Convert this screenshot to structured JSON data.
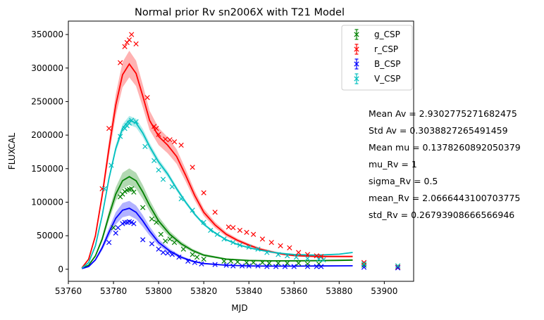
{
  "chart_data": {
    "type": "scatter",
    "title": "Normal prior Rv sn2006X with T21 Model",
    "xlabel": "MJD",
    "ylabel": "FLUXCAL",
    "xlim": [
      53760,
      53913
    ],
    "ylim": [
      -18000,
      370000
    ],
    "x_ticks": [
      53760,
      53780,
      53800,
      53820,
      53840,
      53860,
      53880,
      53900
    ],
    "y_ticks": [
      0,
      50000,
      100000,
      150000,
      200000,
      250000,
      300000,
      350000
    ],
    "grid": false,
    "legend_position": "top-right",
    "series": [
      {
        "name": "g_CSP",
        "color": "#008000",
        "points": [
          [
            53780,
            62000
          ],
          [
            53783,
            108000
          ],
          [
            53784,
            112000
          ],
          [
            53785,
            116000
          ],
          [
            53786,
            118000
          ],
          [
            53787,
            119000
          ],
          [
            53788,
            120000
          ],
          [
            53789,
            115000
          ],
          [
            53793,
            92000
          ],
          [
            53797,
            75000
          ],
          [
            53799,
            70000
          ],
          [
            53801,
            52000
          ],
          [
            53803,
            42000
          ],
          [
            53805,
            45000
          ],
          [
            53807,
            40000
          ],
          [
            53811,
            30000
          ],
          [
            53815,
            22000
          ],
          [
            53817,
            18000
          ],
          [
            53820,
            15000
          ],
          [
            53829,
            12000
          ],
          [
            53832,
            12000
          ],
          [
            53835,
            11000
          ],
          [
            53839,
            10000
          ],
          [
            53842,
            10000
          ],
          [
            53846,
            10000
          ],
          [
            53849,
            9000
          ],
          [
            53853,
            9000
          ],
          [
            53857,
            9000
          ],
          [
            53862,
            9000
          ],
          [
            53866,
            8000
          ],
          [
            53871,
            8000
          ],
          [
            53891,
            6000
          ],
          [
            53906,
            5000
          ]
        ],
        "model": [
          [
            53766,
            1500
          ],
          [
            53769,
            6000
          ],
          [
            53772,
            20000
          ],
          [
            53775,
            45000
          ],
          [
            53778,
            80000
          ],
          [
            53781,
            112000
          ],
          [
            53784,
            132000
          ],
          [
            53787,
            138000
          ],
          [
            53790,
            132000
          ],
          [
            53793,
            115000
          ],
          [
            53796,
            95000
          ],
          [
            53800,
            72000
          ],
          [
            53805,
            52000
          ],
          [
            53810,
            38000
          ],
          [
            53815,
            28000
          ],
          [
            53820,
            21000
          ],
          [
            53830,
            15000
          ],
          [
            53840,
            13000
          ],
          [
            53850,
            12500
          ],
          [
            53860,
            12500
          ],
          [
            53870,
            12800
          ],
          [
            53880,
            13300
          ],
          [
            53886,
            13700
          ]
        ],
        "band": 0.09
      },
      {
        "name": "r_CSP",
        "color": "#ff0000",
        "points": [
          [
            53775,
            120000
          ],
          [
            53778,
            210000
          ],
          [
            53783,
            308000
          ],
          [
            53785,
            332000
          ],
          [
            53786,
            338000
          ],
          [
            53787,
            342000
          ],
          [
            53788,
            350000
          ],
          [
            53790,
            336000
          ],
          [
            53795,
            256000
          ],
          [
            53798,
            213000
          ],
          [
            53799,
            210000
          ],
          [
            53800,
            201000
          ],
          [
            53803,
            194000
          ],
          [
            53805,
            193000
          ],
          [
            53807,
            190000
          ],
          [
            53810,
            185000
          ],
          [
            53815,
            152000
          ],
          [
            53820,
            114000
          ],
          [
            53825,
            85000
          ],
          [
            53831,
            63000
          ],
          [
            53833,
            62000
          ],
          [
            53836,
            58000
          ],
          [
            53839,
            55000
          ],
          [
            53842,
            52000
          ],
          [
            53846,
            45000
          ],
          [
            53850,
            40000
          ],
          [
            53854,
            35000
          ],
          [
            53858,
            32000
          ],
          [
            53862,
            25000
          ],
          [
            53866,
            22000
          ],
          [
            53870,
            20000
          ],
          [
            53872,
            19000
          ],
          [
            53891,
            10000
          ],
          [
            53906,
            3000
          ]
        ],
        "model": [
          [
            53766,
            2000
          ],
          [
            53769,
            15000
          ],
          [
            53772,
            50000
          ],
          [
            53775,
            110000
          ],
          [
            53778,
            180000
          ],
          [
            53781,
            245000
          ],
          [
            53784,
            290000
          ],
          [
            53787,
            306000
          ],
          [
            53790,
            292000
          ],
          [
            53793,
            258000
          ],
          [
            53796,
            222000
          ],
          [
            53800,
            198000
          ],
          [
            53804,
            185000
          ],
          [
            53808,
            168000
          ],
          [
            53812,
            140000
          ],
          [
            53816,
            110000
          ],
          [
            53820,
            85000
          ],
          [
            53825,
            66000
          ],
          [
            53830,
            52000
          ],
          [
            53835,
            43000
          ],
          [
            53840,
            36000
          ],
          [
            53845,
            30000
          ],
          [
            53850,
            26000
          ],
          [
            53855,
            22500
          ],
          [
            53860,
            20500
          ],
          [
            53870,
            19000
          ],
          [
            53880,
            19000
          ],
          [
            53886,
            19000
          ]
        ],
        "band": 0.065
      },
      {
        "name": "B_CSP",
        "color": "#0000ff",
        "points": [
          [
            53778,
            40000
          ],
          [
            53781,
            54000
          ],
          [
            53782,
            62000
          ],
          [
            53784,
            68000
          ],
          [
            53785,
            70000
          ],
          [
            53786,
            70000
          ],
          [
            53787,
            71000
          ],
          [
            53788,
            70000
          ],
          [
            53789,
            68000
          ],
          [
            53793,
            44000
          ],
          [
            53797,
            38000
          ],
          [
            53800,
            30000
          ],
          [
            53802,
            25000
          ],
          [
            53804,
            24000
          ],
          [
            53806,
            22000
          ],
          [
            53809,
            18000
          ],
          [
            53813,
            12000
          ],
          [
            53816,
            10000
          ],
          [
            53819,
            8000
          ],
          [
            53825,
            7000
          ],
          [
            53830,
            6000
          ],
          [
            53833,
            5000
          ],
          [
            53837,
            5000
          ],
          [
            53840,
            5000
          ],
          [
            53844,
            5000
          ],
          [
            53848,
            4000
          ],
          [
            53852,
            4000
          ],
          [
            53856,
            4000
          ],
          [
            53860,
            4000
          ],
          [
            53866,
            4000
          ],
          [
            53870,
            4000
          ],
          [
            53872,
            4000
          ],
          [
            53891,
            3000
          ],
          [
            53906,
            2000
          ]
        ],
        "model": [
          [
            53766,
            1000
          ],
          [
            53769,
            4000
          ],
          [
            53772,
            14000
          ],
          [
            53775,
            32000
          ],
          [
            53778,
            55000
          ],
          [
            53781,
            76000
          ],
          [
            53784,
            88000
          ],
          [
            53787,
            91000
          ],
          [
            53790,
            85000
          ],
          [
            53793,
            72000
          ],
          [
            53796,
            57000
          ],
          [
            53800,
            40000
          ],
          [
            53805,
            27000
          ],
          [
            53810,
            18000
          ],
          [
            53815,
            12000
          ],
          [
            53820,
            8500
          ],
          [
            53830,
            6000
          ],
          [
            53840,
            5000
          ],
          [
            53850,
            4700
          ],
          [
            53860,
            4700
          ],
          [
            53870,
            4900
          ],
          [
            53880,
            5100
          ],
          [
            53886,
            5200
          ]
        ],
        "band": 0.12
      },
      {
        "name": "V_CSP",
        "color": "#00bfbf",
        "points": [
          [
            53776,
            120000
          ],
          [
            53779,
            155000
          ],
          [
            53783,
            198000
          ],
          [
            53785,
            210000
          ],
          [
            53786,
            214000
          ],
          [
            53787,
            218000
          ],
          [
            53788,
            222000
          ],
          [
            53790,
            220000
          ],
          [
            53794,
            183000
          ],
          [
            53798,
            162000
          ],
          [
            53800,
            148000
          ],
          [
            53802,
            134000
          ],
          [
            53806,
            123000
          ],
          [
            53810,
            105000
          ],
          [
            53815,
            88000
          ],
          [
            53820,
            70000
          ],
          [
            53823,
            58000
          ],
          [
            53826,
            52000
          ],
          [
            53829,
            45000
          ],
          [
            53833,
            40000
          ],
          [
            53836,
            36000
          ],
          [
            53840,
            33000
          ],
          [
            53844,
            30000
          ],
          [
            53848,
            25000
          ],
          [
            53853,
            22000
          ],
          [
            53857,
            20000
          ],
          [
            53861,
            18000
          ],
          [
            53866,
            16000
          ],
          [
            53871,
            15000
          ],
          [
            53873,
            14000
          ],
          [
            53891,
            8000
          ],
          [
            53906,
            5000
          ]
        ],
        "model": [
          [
            53766,
            1500
          ],
          [
            53769,
            10000
          ],
          [
            53772,
            35000
          ],
          [
            53775,
            80000
          ],
          [
            53778,
            135000
          ],
          [
            53781,
            180000
          ],
          [
            53784,
            210000
          ],
          [
            53787,
            222000
          ],
          [
            53790,
            218000
          ],
          [
            53793,
            203000
          ],
          [
            53796,
            183000
          ],
          [
            53800,
            160000
          ],
          [
            53804,
            142000
          ],
          [
            53808,
            120000
          ],
          [
            53812,
            100000
          ],
          [
            53816,
            82000
          ],
          [
            53820,
            67000
          ],
          [
            53825,
            54000
          ],
          [
            53830,
            44000
          ],
          [
            53835,
            37000
          ],
          [
            53840,
            32000
          ],
          [
            53845,
            28500
          ],
          [
            53850,
            25500
          ],
          [
            53855,
            23500
          ],
          [
            53860,
            22000
          ],
          [
            53870,
            21000
          ],
          [
            53880,
            22500
          ],
          [
            53886,
            25000
          ]
        ],
        "band": 0.03
      }
    ]
  },
  "annotations": [
    "Mean Av = 2.9302775271682475",
    "Std Av = 0.3038827265491459",
    "Mean mu = 0.1378260892050379",
    "mu_Rv = 1",
    "sigma_Rv = 0.5",
    "mean_Rv = 2.0666443100703775",
    "std_Rv = 0.26793908666566946"
  ]
}
